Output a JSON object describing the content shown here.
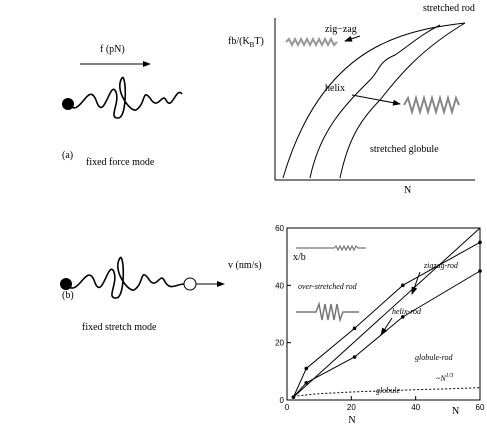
{
  "panel_a": {
    "label": "(a)",
    "force_label": "f (pN)",
    "caption": "fixed force mode",
    "phase_diagram": {
      "y_label_parts": [
        "fb/(K",
        "B",
        "T)"
      ],
      "x_label": "N",
      "regions": [
        "stretched rod",
        "zig−zag",
        "helix",
        "stretched globule"
      ]
    }
  },
  "panel_b": {
    "label": "(b)",
    "velocity_label": "v (nm/s)",
    "caption": "fixed stretch mode"
  },
  "chart_data": {
    "type": "line",
    "xlim": [
      0,
      60
    ],
    "ylim": [
      0,
      60
    ],
    "xticks": [
      0,
      20,
      40,
      60
    ],
    "yticks": [
      0,
      20,
      40,
      60
    ],
    "x_label": "N",
    "axis_end_label": "N",
    "y_label": "x/b",
    "annotations": [
      "over-stretched rod",
      "zigzag-rod",
      "helix-rod",
      "globule-rod",
      "globule"
    ],
    "scaling_label_parts": [
      "~N",
      "1/3"
    ],
    "series": [
      {
        "color": "#000000",
        "markers": false,
        "dashed": false,
        "x": [
          2,
          60
        ],
        "values": [
          1,
          60
        ]
      },
      {
        "color": "#000000",
        "markers": true,
        "dashed": false,
        "x": [
          2,
          6,
          21,
          36,
          60
        ],
        "values": [
          1,
          11,
          25,
          40,
          55
        ]
      },
      {
        "color": "#000000",
        "markers": true,
        "dashed": false,
        "x": [
          2,
          6,
          21,
          36,
          60
        ],
        "values": [
          1,
          6,
          15,
          29,
          45
        ]
      },
      {
        "color": "#000000",
        "markers": false,
        "dashed": true,
        "x": [
          2,
          10,
          20,
          30,
          40,
          50,
          60
        ],
        "values": [
          1.3,
          2.2,
          2.8,
          3.2,
          3.6,
          3.9,
          4.3
        ]
      }
    ]
  }
}
